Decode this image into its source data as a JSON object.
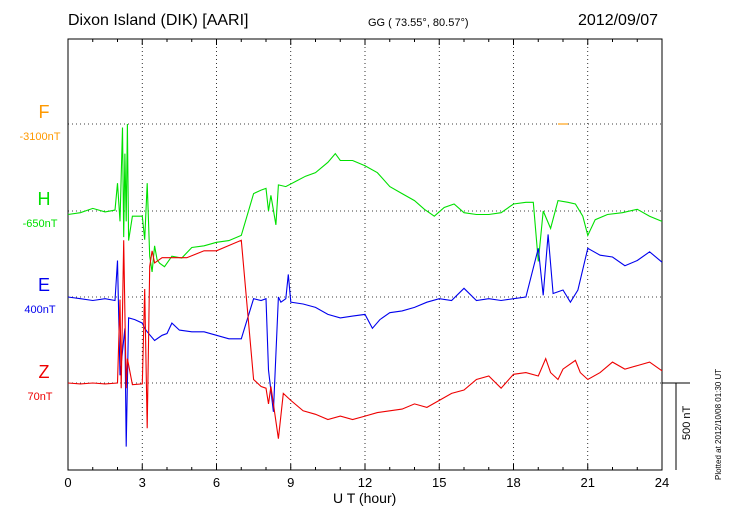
{
  "header": {
    "station": "Dixon Island (DIK)  [AARI]",
    "coords": "GG ( 73.55°,  80.57°)",
    "date": "2012/09/07"
  },
  "footer": {
    "plotted": "Plotted at 2012/10/08 01:30 UT"
  },
  "chart_data": {
    "type": "line",
    "xlabel": "U T (hour)",
    "xlim": [
      0,
      24
    ],
    "xticks": [
      0,
      3,
      6,
      9,
      12,
      15,
      18,
      21,
      24
    ],
    "scale_bar_label": "500 nT",
    "series": [
      {
        "name": "F",
        "baseline": "-3100nT",
        "color": "#ff9900",
        "points": [
          [
            19.8,
            0
          ],
          [
            20.2,
            0
          ]
        ]
      },
      {
        "name": "H",
        "baseline": "-650nT",
        "color": "#00e000",
        "points": [
          [
            0,
            -20
          ],
          [
            0.5,
            -10
          ],
          [
            1.0,
            15
          ],
          [
            1.5,
            -5
          ],
          [
            1.9,
            5
          ],
          [
            2.0,
            160
          ],
          [
            2.1,
            -60
          ],
          [
            2.2,
            480
          ],
          [
            2.25,
            -150
          ],
          [
            2.3,
            330
          ],
          [
            2.35,
            -60
          ],
          [
            2.4,
            500
          ],
          [
            2.45,
            -170
          ],
          [
            2.6,
            -30
          ],
          [
            3.0,
            -30
          ],
          [
            3.1,
            -165
          ],
          [
            3.2,
            160
          ],
          [
            3.3,
            -260
          ],
          [
            3.4,
            -350
          ],
          [
            3.5,
            -200
          ],
          [
            3.6,
            -280
          ],
          [
            3.7,
            -300
          ],
          [
            3.9,
            -320
          ],
          [
            4.2,
            -260
          ],
          [
            4.6,
            -270
          ],
          [
            5.0,
            -210
          ],
          [
            5.5,
            -200
          ],
          [
            6.0,
            -180
          ],
          [
            6.5,
            -170
          ],
          [
            7.0,
            -140
          ],
          [
            7.5,
            100
          ],
          [
            7.8,
            120
          ],
          [
            8.0,
            130
          ],
          [
            8.1,
            0
          ],
          [
            8.2,
            90
          ],
          [
            8.4,
            -80
          ],
          [
            8.5,
            150
          ],
          [
            8.8,
            140
          ],
          [
            9.2,
            170
          ],
          [
            9.6,
            200
          ],
          [
            10.0,
            220
          ],
          [
            10.5,
            280
          ],
          [
            10.8,
            330
          ],
          [
            11.0,
            290
          ],
          [
            11.5,
            290
          ],
          [
            12.0,
            260
          ],
          [
            12.5,
            220
          ],
          [
            13.0,
            140
          ],
          [
            13.5,
            100
          ],
          [
            14.0,
            60
          ],
          [
            14.4,
            10
          ],
          [
            14.8,
            -30
          ],
          [
            15.2,
            20
          ],
          [
            15.6,
            40
          ],
          [
            16.0,
            -10
          ],
          [
            16.5,
            -20
          ],
          [
            17.0,
            -20
          ],
          [
            17.5,
            -10
          ],
          [
            18.0,
            40
          ],
          [
            18.5,
            50
          ],
          [
            18.8,
            50
          ],
          [
            19.0,
            -290
          ],
          [
            19.2,
            0
          ],
          [
            19.5,
            -100
          ],
          [
            19.8,
            60
          ],
          [
            20.2,
            50
          ],
          [
            20.5,
            40
          ],
          [
            20.8,
            -30
          ],
          [
            21.0,
            -140
          ],
          [
            21.3,
            -50
          ],
          [
            21.8,
            -20
          ],
          [
            22.4,
            -10
          ],
          [
            23.0,
            10
          ],
          [
            23.5,
            -30
          ],
          [
            24,
            -60
          ]
        ]
      },
      {
        "name": "E",
        "baseline": "400nT",
        "color": "#0000ee",
        "points": [
          [
            0,
            0
          ],
          [
            0.5,
            -10
          ],
          [
            1.0,
            -20
          ],
          [
            1.5,
            -10
          ],
          [
            1.9,
            -20
          ],
          [
            2.0,
            210
          ],
          [
            2.1,
            -450
          ],
          [
            2.3,
            -180
          ],
          [
            2.35,
            -860
          ],
          [
            2.45,
            -120
          ],
          [
            2.7,
            -130
          ],
          [
            3.0,
            -150
          ],
          [
            3.1,
            -180
          ],
          [
            3.2,
            -200
          ],
          [
            3.5,
            -250
          ],
          [
            3.8,
            -220
          ],
          [
            4.0,
            -210
          ],
          [
            4.2,
            -150
          ],
          [
            4.5,
            -190
          ],
          [
            5.0,
            -200
          ],
          [
            5.5,
            -200
          ],
          [
            6.0,
            -220
          ],
          [
            6.5,
            -240
          ],
          [
            7.0,
            -240
          ],
          [
            7.5,
            -10
          ],
          [
            7.8,
            -20
          ],
          [
            8.0,
            -10
          ],
          [
            8.1,
            -420
          ],
          [
            8.3,
            -660
          ],
          [
            8.5,
            0
          ],
          [
            8.6,
            -30
          ],
          [
            8.8,
            -10
          ],
          [
            8.9,
            130
          ],
          [
            9.0,
            -30
          ],
          [
            9.5,
            -40
          ],
          [
            10.0,
            -60
          ],
          [
            10.5,
            -100
          ],
          [
            11.0,
            -120
          ],
          [
            11.5,
            -110
          ],
          [
            12.0,
            -100
          ],
          [
            12.3,
            -180
          ],
          [
            12.6,
            -130
          ],
          [
            13.0,
            -90
          ],
          [
            13.5,
            -80
          ],
          [
            14.0,
            -60
          ],
          [
            14.5,
            -30
          ],
          [
            15.0,
            -10
          ],
          [
            15.5,
            -20
          ],
          [
            16.0,
            50
          ],
          [
            16.5,
            -20
          ],
          [
            17.0,
            -10
          ],
          [
            17.5,
            -20
          ],
          [
            18.0,
            -10
          ],
          [
            18.5,
            0
          ],
          [
            19.0,
            280
          ],
          [
            19.2,
            10
          ],
          [
            19.4,
            360
          ],
          [
            19.6,
            20
          ],
          [
            20.0,
            40
          ],
          [
            20.3,
            -30
          ],
          [
            20.6,
            40
          ],
          [
            21.0,
            280
          ],
          [
            21.5,
            240
          ],
          [
            22.0,
            230
          ],
          [
            22.5,
            180
          ],
          [
            23.0,
            210
          ],
          [
            23.5,
            260
          ],
          [
            24,
            200
          ]
        ]
      },
      {
        "name": "Z",
        "baseline": "70nT",
        "color": "#ee0000",
        "points": [
          [
            0,
            0
          ],
          [
            0.5,
            -5
          ],
          [
            1.0,
            0
          ],
          [
            1.5,
            -5
          ],
          [
            2.0,
            0
          ],
          [
            2.1,
            480
          ],
          [
            2.15,
            -30
          ],
          [
            2.25,
            820
          ],
          [
            2.3,
            400
          ],
          [
            2.35,
            -30
          ],
          [
            2.4,
            140
          ],
          [
            2.6,
            -10
          ],
          [
            3.0,
            -5
          ],
          [
            3.1,
            540
          ],
          [
            3.2,
            -260
          ],
          [
            3.3,
            670
          ],
          [
            3.4,
            760
          ],
          [
            3.5,
            690
          ],
          [
            3.8,
            720
          ],
          [
            4.2,
            720
          ],
          [
            4.8,
            720
          ],
          [
            5.5,
            760
          ],
          [
            6.0,
            760
          ],
          [
            6.5,
            790
          ],
          [
            7.0,
            820
          ],
          [
            7.5,
            20
          ],
          [
            7.8,
            -20
          ],
          [
            8.0,
            -30
          ],
          [
            8.1,
            -120
          ],
          [
            8.2,
            -20
          ],
          [
            8.5,
            -320
          ],
          [
            8.7,
            -60
          ],
          [
            9.0,
            -100
          ],
          [
            9.5,
            -160
          ],
          [
            10.0,
            -180
          ],
          [
            10.5,
            -210
          ],
          [
            11.0,
            -190
          ],
          [
            11.5,
            -210
          ],
          [
            12.0,
            -190
          ],
          [
            12.5,
            -170
          ],
          [
            13.0,
            -160
          ],
          [
            13.5,
            -150
          ],
          [
            14.0,
            -120
          ],
          [
            14.5,
            -140
          ],
          [
            15.0,
            -100
          ],
          [
            15.5,
            -60
          ],
          [
            16.0,
            -40
          ],
          [
            16.5,
            20
          ],
          [
            17.0,
            40
          ],
          [
            17.5,
            -30
          ],
          [
            18.0,
            50
          ],
          [
            18.5,
            60
          ],
          [
            19.0,
            40
          ],
          [
            19.3,
            140
          ],
          [
            19.5,
            60
          ],
          [
            19.8,
            20
          ],
          [
            20.0,
            80
          ],
          [
            20.5,
            130
          ],
          [
            20.7,
            60
          ],
          [
            21.0,
            20
          ],
          [
            21.5,
            60
          ],
          [
            22.0,
            120
          ],
          [
            22.5,
            80
          ],
          [
            23.0,
            100
          ],
          [
            23.5,
            120
          ],
          [
            24,
            70
          ]
        ]
      }
    ]
  }
}
